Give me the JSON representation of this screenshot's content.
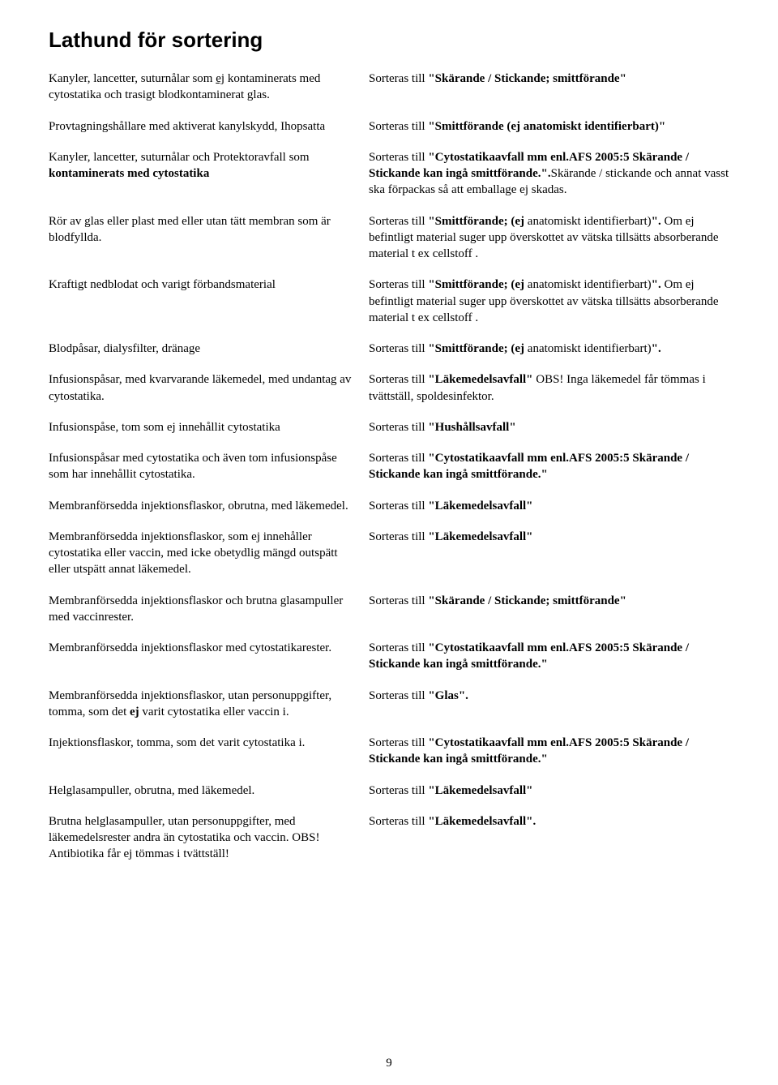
{
  "title": "Lathund för sortering",
  "page_number": "9",
  "rows": [
    {
      "left": [
        {
          "t": "Kanyler, lancetter, suturnålar som "
        },
        {
          "t": "ej",
          "u": true
        },
        {
          "t": " kontaminerats med cytostatika och trasigt blodkontaminerat glas."
        }
      ],
      "right": [
        {
          "t": "Sorteras till "
        },
        {
          "t": "\"Skärande / Stickande; smittförande\"",
          "b": true
        }
      ]
    },
    {
      "left": [
        {
          "t": "Provtagningshållare med aktiverat kanylskydd, Ihopsatta"
        }
      ],
      "right": [
        {
          "t": "Sorteras till "
        },
        {
          "t": "\"Smittförande (ej anatomiskt identifierbart)\"",
          "b": true
        }
      ]
    },
    {
      "left": [
        {
          "t": "Kanyler, lancetter, suturnålar och Protektoravfall som "
        },
        {
          "t": "kontaminerats med cytostatika",
          "b": true
        }
      ],
      "right": [
        {
          "t": "Sorteras till "
        },
        {
          "t": "\"Cytostatikaavfall mm enl.AFS 2005:5 Skärande / Stickande kan ingå smittförande.\".",
          "b": true
        },
        {
          "t": "Skärande / stickande och annat vasst ska förpackas så att emballage ej skadas."
        }
      ]
    },
    {
      "left": [
        {
          "t": "Rör av glas eller plast med eller utan tätt membran som är blodfyllda."
        }
      ],
      "right": [
        {
          "t": "Sorteras till "
        },
        {
          "t": "\"Smittförande; (ej",
          "b": true
        },
        {
          "t": " anatomiskt identifierbart)"
        },
        {
          "t": "\".",
          "b": true
        },
        {
          "t": " Om ej befintligt material suger upp överskottet av vätska tillsätts absorberande material t ex cellstoff ."
        }
      ]
    },
    {
      "left": [
        {
          "t": "Kraftigt nedblodat och varigt förbandsmaterial"
        }
      ],
      "right": [
        {
          "t": "Sorteras till "
        },
        {
          "t": "\"Smittförande; (ej",
          "b": true
        },
        {
          "t": " anatomiskt identifierbart)"
        },
        {
          "t": "\".",
          "b": true
        },
        {
          "t": " Om ej befintligt material suger upp överskottet av vätska tillsätts absorberande material t ex cellstoff ."
        }
      ]
    },
    {
      "left": [
        {
          "t": "Blodpåsar, dialysfilter, dränage"
        }
      ],
      "right": [
        {
          "t": "Sorteras till "
        },
        {
          "t": "\"Smittförande; (ej",
          "b": true
        },
        {
          "t": " anatomiskt identifierbart)"
        },
        {
          "t": "\".",
          "b": true
        }
      ]
    },
    {
      "left": [
        {
          "t": "Infusionspåsar, med kvarvarande läkemedel, med undantag av cytostatika."
        }
      ],
      "right": [
        {
          "t": "Sorteras till "
        },
        {
          "t": "\"Läkemedelsavfall\"",
          "b": true
        },
        {
          "t": " OBS! Inga läkemedel får tömmas i tvättställ, spoldesinfektor."
        }
      ]
    },
    {
      "left": [
        {
          "t": "Infusionspåse, tom som ej innehållit cytostatika"
        }
      ],
      "right": [
        {
          "t": "Sorteras till "
        },
        {
          "t": "\"Hushållsavfall\"",
          "b": true
        }
      ]
    },
    {
      "left": [
        {
          "t": "Infusionspåsar med cytostatika och även tom infusionspåse som har innehållit cytostatika."
        }
      ],
      "right": [
        {
          "t": "Sorteras till "
        },
        {
          "t": "\"Cytostatikaavfall mm enl.AFS 2005:5 Skärande / Stickande kan ingå smittförande.\"",
          "b": true
        }
      ]
    },
    {
      "left": [
        {
          "t": "Membranförsedda injektionsflaskor, obrutna, med läkemedel."
        }
      ],
      "right": [
        {
          "t": "Sorteras till "
        },
        {
          "t": "\"Läkemedelsavfall\"",
          "b": true
        }
      ]
    },
    {
      "left": [
        {
          "t": "Membranförsedda injektionsflaskor, som ej innehåller cytostatika eller vaccin, med icke obetydlig mängd outspätt eller utspätt annat läkemedel."
        }
      ],
      "right": [
        {
          "t": "Sorteras till "
        },
        {
          "t": "\"Läkemedelsavfall\"",
          "b": true
        }
      ]
    },
    {
      "left": [
        {
          "t": "Membranförsedda injektionsflaskor och brutna glasampuller med vaccinrester."
        }
      ],
      "right": [
        {
          "t": "Sorteras till "
        },
        {
          "t": "\"Skärande / Stickande; smittförande\"",
          "b": true
        }
      ]
    },
    {
      "left": [
        {
          "t": "Membranförsedda injektionsflaskor med cytostatikarester."
        }
      ],
      "right": [
        {
          "t": "Sorteras till "
        },
        {
          "t": "\"Cytostatikaavfall mm enl.AFS 2005:5 Skärande / Stickande kan ingå smittförande.\"",
          "b": true
        }
      ]
    },
    {
      "left": [
        {
          "t": "Membranförsedda injektionsflaskor, utan personuppgifter, tomma, som det "
        },
        {
          "t": "ej",
          "b": true
        },
        {
          "t": " varit cytostatika eller vaccin i."
        }
      ],
      "right": [
        {
          "t": "Sorteras till "
        },
        {
          "t": "\"Glas\".",
          "b": true
        }
      ]
    },
    {
      "left": [
        {
          "t": "Injektionsflaskor, tomma, som det varit cytostatika i."
        }
      ],
      "right": [
        {
          "t": "Sorteras till "
        },
        {
          "t": "\"Cytostatikaavfall mm enl.AFS 2005:5 Skärande / Stickande kan ingå smittförande.\"",
          "b": true
        }
      ]
    },
    {
      "left": [
        {
          "t": "Helglasampuller, obrutna, med läkemedel."
        }
      ],
      "right": [
        {
          "t": "Sorteras till "
        },
        {
          "t": "\"Läkemedelsavfall\"",
          "b": true
        }
      ]
    },
    {
      "left": [
        {
          "t": "Brutna helglasampuller, utan personuppgifter, med läkemedelsrester andra än cytostatika och vaccin. OBS! Antibiotika får ej tömmas i tvättställ!"
        }
      ],
      "right": [
        {
          "t": "Sorteras till "
        },
        {
          "t": "\"Läkemedelsavfall\".",
          "b": true
        }
      ]
    }
  ]
}
